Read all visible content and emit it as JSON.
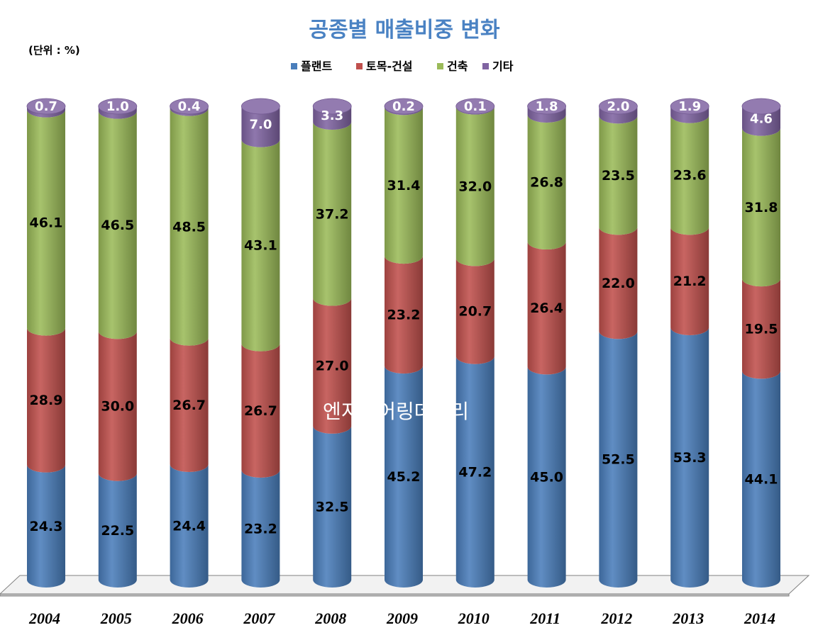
{
  "chart_data": {
    "type": "bar",
    "stacked": true,
    "style": "3d-cylinder",
    "title": "공종별 매출비중 변화",
    "unit_label": "(단위 : %)",
    "legend_placement": "top-center",
    "categories": [
      "2004",
      "2005",
      "2006",
      "2007",
      "2008",
      "2009",
      "2010",
      "2011",
      "2012",
      "2013",
      "2014"
    ],
    "series": [
      {
        "name": "플랜트",
        "color": "#4a7ebb",
        "values": [
          24.3,
          22.5,
          24.4,
          23.2,
          32.5,
          45.2,
          47.2,
          45.0,
          52.5,
          53.3,
          44.1
        ]
      },
      {
        "name": "토목-건설",
        "color": "#c0504d",
        "values": [
          28.9,
          30.0,
          26.7,
          26.7,
          27.0,
          23.2,
          20.7,
          26.4,
          22.0,
          21.2,
          19.5
        ]
      },
      {
        "name": "건축",
        "color": "#9bbb59",
        "values": [
          46.1,
          46.5,
          48.5,
          43.1,
          37.2,
          31.4,
          32.0,
          26.8,
          23.5,
          23.6,
          31.8
        ]
      },
      {
        "name": "기타",
        "color": "#8064a2",
        "values": [
          0.7,
          1.0,
          0.4,
          7.0,
          3.3,
          0.2,
          0.1,
          1.8,
          2.0,
          1.9,
          4.6
        ]
      }
    ],
    "value_labels": [
      [
        "24.3",
        "22.5",
        "24.4",
        "23.2",
        "32.5",
        "45.2",
        "47.2",
        "45.0",
        "52.5",
        "53.3",
        "44.1"
      ],
      [
        "28.9",
        "30.0",
        "26.7",
        "26.7",
        "27.0",
        "23.2",
        "20.7",
        "26.4",
        "22.0",
        "21.2",
        "19.5"
      ],
      [
        "46.1",
        "46.5",
        "48.5",
        "43.1",
        "37.2",
        "31.4",
        "32.0",
        "26.8",
        "23.5",
        "23.6",
        "31.8"
      ],
      [
        "0.7",
        "1.0",
        "0.4",
        "7.0",
        "3.3",
        "0.2",
        "0.1",
        "1.8",
        "2.0",
        "1.9",
        "4.6"
      ]
    ],
    "ylim": [
      0,
      100
    ],
    "grid": false
  },
  "watermark": "엔지니어링데일리"
}
